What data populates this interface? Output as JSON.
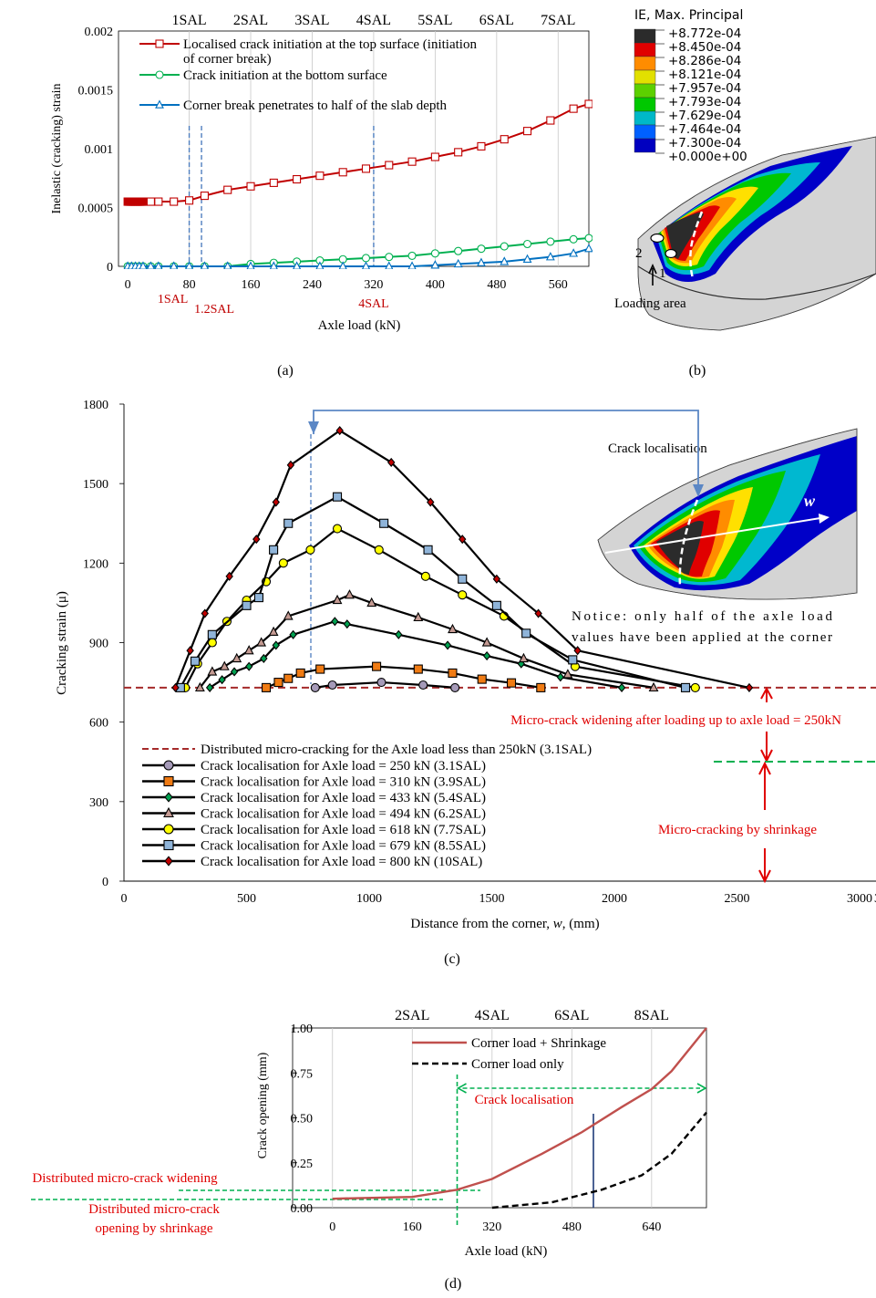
{
  "chart_data": [
    {
      "panel": "(a)",
      "type": "line",
      "xlabel": "Axle load  (kN)",
      "ylabel": "Inelastic (cracking) strain",
      "xlim": [
        -12,
        600
      ],
      "ylim": [
        0,
        0.002
      ],
      "x_ticks": [
        0,
        80,
        160,
        240,
        320,
        400,
        480,
        560
      ],
      "y_ticks": [
        0,
        0.0005,
        0.001,
        0.0015,
        0.002
      ],
      "y_tick_labels": [
        "0",
        "0.0005",
        "0.001",
        "0.0015",
        "0.002"
      ],
      "top_ticks": [
        {
          "x": 80,
          "label": "1SAL"
        },
        {
          "x": 160,
          "label": "2SAL"
        },
        {
          "x": 240,
          "label": "3SAL"
        },
        {
          "x": 320,
          "label": "4SAL"
        },
        {
          "x": 400,
          "label": "5SAL"
        },
        {
          "x": 480,
          "label": "6SAL"
        },
        {
          "x": 560,
          "label": "7SAL"
        }
      ],
      "vlines": [
        {
          "x": 80,
          "label": "1SAL"
        },
        {
          "x": 96,
          "label": "1.2SAL"
        },
        {
          "x": 320,
          "label": "4SAL"
        }
      ],
      "grid": "vertical",
      "legend_position": "top-left",
      "series": [
        {
          "name": "Localised crack initiation at the top surface (initiation",
          "name2": "of corner break)",
          "color": "#c00000",
          "marker": "square",
          "x": [
            0,
            2,
            4,
            6,
            8,
            10,
            12,
            14,
            16,
            18,
            20,
            30,
            40,
            60,
            80,
            100,
            130,
            160,
            190,
            220,
            250,
            280,
            310,
            340,
            370,
            400,
            430,
            460,
            490,
            520,
            550,
            580,
            600
          ],
          "y": [
            0.00055,
            0.00055,
            0.00055,
            0.00055,
            0.00055,
            0.00055,
            0.00055,
            0.00055,
            0.00055,
            0.00055,
            0.00055,
            0.00055,
            0.00055,
            0.00055,
            0.00056,
            0.0006,
            0.00065,
            0.00068,
            0.00071,
            0.00074,
            0.00077,
            0.0008,
            0.00083,
            0.00086,
            0.00089,
            0.00093,
            0.00097,
            0.00102,
            0.00108,
            0.00115,
            0.00124,
            0.00134,
            0.00138
          ]
        },
        {
          "name": "Crack initiation at the bottom surface",
          "color": "#00b050",
          "marker": "circle",
          "x": [
            0,
            5,
            10,
            15,
            20,
            30,
            40,
            60,
            80,
            100,
            130,
            160,
            190,
            220,
            250,
            280,
            310,
            340,
            370,
            400,
            430,
            460,
            490,
            520,
            550,
            580,
            600
          ],
          "y": [
            0.0,
            0.0,
            0.0,
            0.0,
            0.0,
            0.0,
            0.0,
            0.0,
            0.0,
            0.0,
            0.0,
            2e-05,
            3e-05,
            4e-05,
            5e-05,
            6e-05,
            7e-05,
            8e-05,
            9e-05,
            0.00011,
            0.00013,
            0.00015,
            0.00017,
            0.00019,
            0.00021,
            0.00023,
            0.00024
          ]
        },
        {
          "name": "Corner break penetrates to half of the slab depth",
          "color": "#0070c0",
          "marker": "triangle",
          "x": [
            0,
            5,
            10,
            15,
            20,
            30,
            40,
            60,
            80,
            100,
            130,
            160,
            190,
            220,
            250,
            280,
            310,
            340,
            370,
            400,
            430,
            460,
            490,
            520,
            550,
            580,
            600
          ],
          "y": [
            0.0,
            0.0,
            0.0,
            0.0,
            0.0,
            0.0,
            0.0,
            0.0,
            0.0,
            0.0,
            0.0,
            0.0,
            0.0,
            0.0,
            0.0,
            0.0,
            0.0,
            0.0,
            0.0,
            1e-05,
            2e-05,
            3e-05,
            4e-05,
            6e-05,
            8e-05,
            0.00011,
            0.00015
          ]
        }
      ]
    },
    {
      "panel": "(c)",
      "type": "line",
      "xlabel_prefix": "Distance from the corner, ",
      "xlabel_var": "w",
      "xlabel_suffix": ", (mm)",
      "ylabel": "Cracking strain (μ)",
      "xlim": [
        0,
        3500
      ],
      "ylim": [
        0,
        1800
      ],
      "x_ticks": [
        0,
        500,
        1000,
        1500,
        2000,
        2500,
        3000
      ],
      "y_ticks": [
        0,
        300,
        600,
        900,
        1200,
        1500,
        1800
      ],
      "legend_position": "bottom-left",
      "baseline": {
        "y": 730,
        "name": "Distributed micro-cracking for the Axle load less than 250kN (3.1SAL)",
        "color": "#a52a2a"
      },
      "series": [
        {
          "name": "Crack localisation for Axle load = 250 kN (3.1SAL)",
          "fill": "#a59ab8",
          "marker": "circle",
          "x": [
            780,
            850,
            1050,
            1220,
            1350
          ],
          "y": [
            730,
            740,
            750,
            740,
            730
          ]
        },
        {
          "name": "Crack localisation for Axle load = 310 kN (3.9SAL)",
          "fill": "#f07b13",
          "marker": "square",
          "x": [
            580,
            630,
            670,
            720,
            800,
            1030,
            1200,
            1340,
            1460,
            1580,
            1700
          ],
          "y": [
            730,
            750,
            765,
            785,
            800,
            810,
            800,
            785,
            762,
            748,
            730
          ]
        },
        {
          "name": "Crack localisation for Axle load = 433 kN (5.4SAL)",
          "fill": "#00a050",
          "marker": "diamond",
          "x": [
            350,
            400,
            450,
            510,
            570,
            620,
            690,
            860,
            910,
            1120,
            1320,
            1480,
            1620,
            1780,
            2030
          ],
          "y": [
            730,
            760,
            790,
            810,
            840,
            890,
            930,
            980,
            970,
            930,
            890,
            850,
            820,
            770,
            730
          ]
        },
        {
          "name": "Crack localisation for Axle load = 494 kN (6.2SAL)",
          "fill": "#c49a92",
          "marker": "triangle",
          "x": [
            310,
            360,
            410,
            460,
            510,
            560,
            610,
            670,
            870,
            920,
            1010,
            1200,
            1340,
            1480,
            1630,
            1810,
            2160
          ],
          "y": [
            730,
            790,
            810,
            840,
            870,
            900,
            940,
            1000,
            1060,
            1080,
            1050,
            995,
            950,
            900,
            840,
            780,
            730
          ]
        },
        {
          "name": "Crack localisation for Axle load = 618 kN (7.7SAL)",
          "fill": "#ffff00",
          "marker": "circle",
          "x": [
            250,
            300,
            360,
            420,
            500,
            580,
            650,
            760,
            870,
            1040,
            1230,
            1380,
            1550,
            1840,
            2330
          ],
          "y": [
            730,
            820,
            900,
            980,
            1060,
            1130,
            1200,
            1250,
            1330,
            1250,
            1150,
            1080,
            1000,
            810,
            730
          ]
        },
        {
          "name": "Crack localisation for Axle load = 679 kN (8.5SAL)",
          "fill": "#8fb4d9",
          "marker": "square",
          "x": [
            230,
            290,
            360,
            500,
            550,
            610,
            670,
            870,
            1060,
            1240,
            1380,
            1520,
            1640,
            1830,
            2290
          ],
          "y": [
            730,
            830,
            930,
            1040,
            1070,
            1250,
            1350,
            1450,
            1350,
            1250,
            1140,
            1040,
            935,
            835,
            730
          ]
        },
        {
          "name": "Crack localisation for Axle load = 800 kN (10SAL)",
          "fill": "#c00000",
          "marker": "diamond",
          "x": [
            210,
            270,
            330,
            430,
            540,
            620,
            680,
            880,
            1090,
            1250,
            1380,
            1520,
            1690,
            1850,
            2550
          ],
          "y": [
            730,
            870,
            1010,
            1150,
            1290,
            1430,
            1570,
            1700,
            1580,
            1430,
            1290,
            1140,
            1010,
            870,
            730
          ]
        }
      ]
    },
    {
      "panel": "(d)",
      "type": "line",
      "xlabel": "Axle load (kN)",
      "ylabel": "Crack opening (mm)",
      "xlim": [
        -80,
        750
      ],
      "ylim": [
        0,
        1.0
      ],
      "x_ticks": [
        0,
        160,
        320,
        480,
        640
      ],
      "y_ticks": [
        0,
        0.25,
        0.5,
        0.75,
        1.0
      ],
      "y_tick_labels": [
        "0.00",
        "0.25",
        "0.50",
        "0.75",
        "1.00"
      ],
      "top_ticks": [
        {
          "x": 160,
          "label": "2SAL"
        },
        {
          "x": 320,
          "label": "4SAL"
        },
        {
          "x": 480,
          "label": "6SAL"
        },
        {
          "x": 640,
          "label": "8SAL"
        }
      ],
      "grid": "vertical",
      "legend_position": "top-right",
      "series": [
        {
          "name": "Corner load + Shrinkage",
          "color": "#c0504d",
          "style": "solid",
          "x": [
            0,
            160,
            250,
            320,
            420,
            500,
            580,
            640,
            680,
            750
          ],
          "y": [
            0.05,
            0.06,
            0.1,
            0.16,
            0.3,
            0.42,
            0.56,
            0.66,
            0.76,
            1.0
          ]
        },
        {
          "name": "Corner load only",
          "color": "#000000",
          "style": "dashed",
          "x": [
            320,
            440,
            540,
            620,
            680,
            750
          ],
          "y": [
            0.0,
            0.03,
            0.1,
            0.18,
            0.3,
            0.53
          ]
        }
      ],
      "localisation_x": 250
    }
  ],
  "panel_b": {
    "legend_title": "IE, Max. Principal",
    "legend_items": [
      {
        "label": "+8.772e-04",
        "color": "#2b2b2b"
      },
      {
        "label": "+8.450e-04",
        "color": "#e00000"
      },
      {
        "label": "+8.286e-04",
        "color": "#ff8c00"
      },
      {
        "label": "+8.121e-04",
        "color": "#e2e000"
      },
      {
        "label": "+7.957e-04",
        "color": "#5cd000"
      },
      {
        "label": "+7.793e-04",
        "color": "#00c800"
      },
      {
        "label": "+7.629e-04",
        "color": "#00b8c8"
      },
      {
        "label": "+7.464e-04",
        "color": "#0060ff"
      },
      {
        "label": "+7.300e-04",
        "color": "#0000c0"
      },
      {
        "label": "+0.000e+00",
        "color": "#c8c8c8"
      }
    ],
    "point_1": "1",
    "point_2": "2",
    "loading_label": "Loading area"
  },
  "panel_c_labels": {
    "inset_title": "Crack localisation",
    "inset_vector": "w",
    "notice_line1": "Notice: only half of the axle load",
    "notice_line2": "values have been applied at the corner",
    "widening": "Micro-crack widening after loading up to axle load = 250kN",
    "shrinkage": "Micro-cracking by shrinkage",
    "right_tick_fragment": "3"
  },
  "panel_d_labels": {
    "localisation": "Crack localisation",
    "widening": "Distributed micro-crack widening",
    "opening_line1": "Distributed micro-crack",
    "opening_line2": "opening by shrinkage"
  },
  "captions": {
    "a": "(a)",
    "b": "(b)",
    "c": "(c)",
    "d": "(d)"
  }
}
